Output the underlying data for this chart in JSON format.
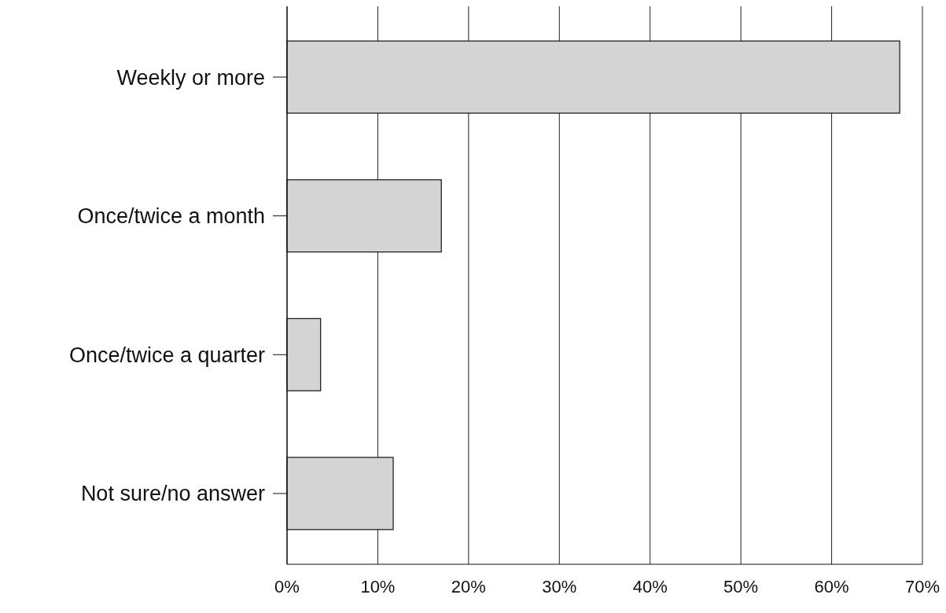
{
  "chart_data": {
    "type": "bar",
    "orientation": "horizontal",
    "categories": [
      "Weekly or more",
      "Once/twice a month",
      "Once/twice a quarter",
      "Not sure/no answer"
    ],
    "values": [
      67.5,
      17,
      3.7,
      11.7
    ],
    "color": "#d4d4d4",
    "xlim": [
      0,
      70
    ],
    "xticks": [
      {
        "value": 0,
        "label": "0%"
      },
      {
        "value": 10,
        "label": "10%"
      },
      {
        "value": 20,
        "label": "20%"
      },
      {
        "value": 30,
        "label": "30%"
      },
      {
        "value": 40,
        "label": "40%"
      },
      {
        "value": 50,
        "label": "50%"
      },
      {
        "value": 60,
        "label": "60%"
      },
      {
        "value": 70,
        "label": "70%"
      }
    ],
    "grid": "x"
  }
}
